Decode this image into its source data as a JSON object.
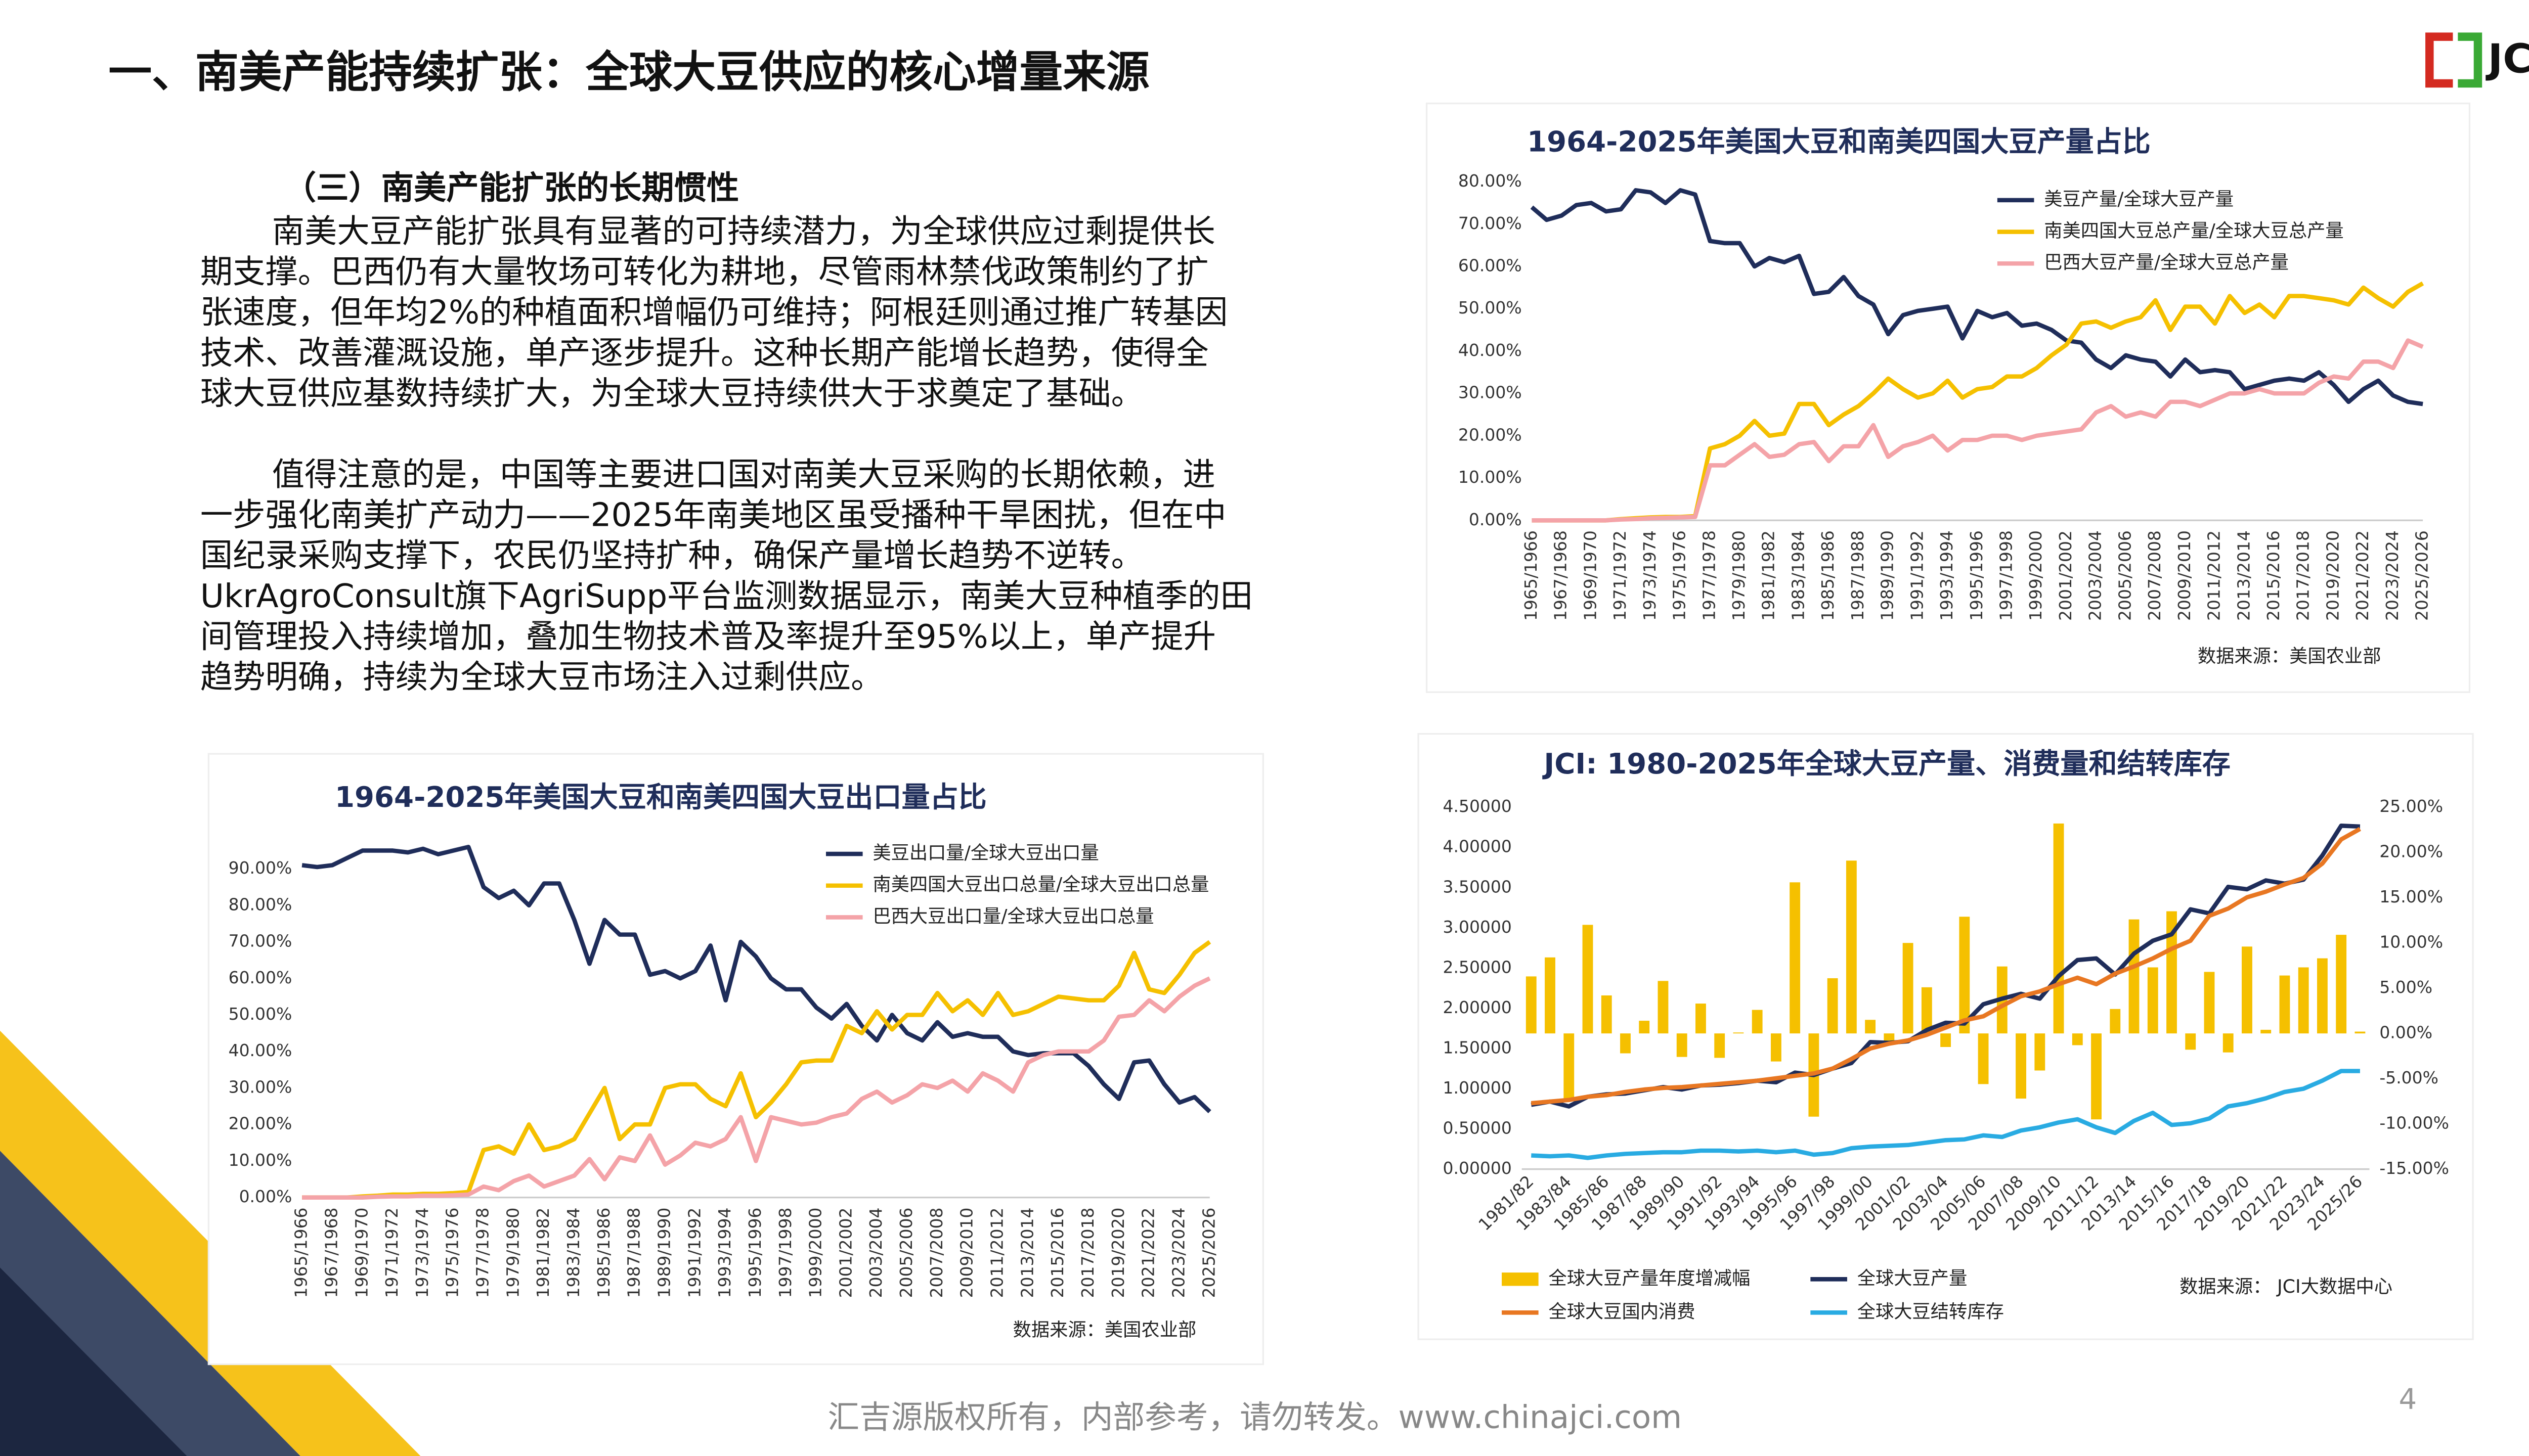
{
  "header": {
    "title": "一、南美产能持续扩张：全球大豆供应的核心增量来源",
    "logo": "JCI"
  },
  "section": {
    "heading": "（三）南美产能扩张的长期惯性",
    "paragraphs": [
      [
        "南美大豆产能扩张具有显著的可持续潜力，为全球供应过剩提供长",
        "期支撑。巴西仍有大量牧场可转化为耕地，尽管雨林禁伐政策制约了扩",
        "张速度，但年均2%的种植面积增幅仍可维持；阿根廷则通过推广转基因",
        "技术、改善灌溉设施，单产逐步提升。这种长期产能增长趋势，使得全",
        "球大豆供应基数持续扩大，为全球大豆持续供大于求奠定了基础。"
      ],
      [
        "值得注意的是，中国等主要进口国对南美大豆采购的长期依赖，进",
        "一步强化南美扩产动力——2025年南美地区虽受播种干旱困扰，但在中",
        "国纪录采购支撑下，农民仍坚持扩种，确保产量增长趋势不逆转。",
        "UkrAgroConsult旗下AgriSupp平台监测数据显示，南美大豆种植季的田",
        "间管理投入持续增加，叠加生物技术普及率提升至95%以上，单产提升",
        "趋势明确，持续为全球大豆市场注入过剩供应。"
      ]
    ]
  },
  "chart_data": [
    {
      "type": "line",
      "title": "1964-2025年美国大豆和南美四国大豆产量占比",
      "source": "数据来源：美国农业部",
      "legend": "top",
      "grid": false,
      "categories": [
        "1965/1966",
        null,
        "1967/1968",
        null,
        "1969/1970",
        null,
        "1971/1972",
        null,
        "1973/1974",
        null,
        "1975/1976",
        null,
        "1977/1978",
        null,
        "1979/1980",
        null,
        "1981/1982",
        null,
        "1983/1984",
        null,
        "1985/1986",
        null,
        "1987/1988",
        null,
        "1989/1990",
        null,
        "1991/1992",
        null,
        "1993/1994",
        null,
        "1995/1996",
        null,
        "1997/1998",
        null,
        "1999/2000",
        null,
        "2001/2002",
        null,
        "2003/2004",
        null,
        "2005/2006",
        null,
        "2007/2008",
        null,
        "2009/2010",
        null,
        "2011/2012",
        null,
        "2013/2014",
        null,
        "2015/2016",
        null,
        "2017/2018",
        null,
        "2019/2020",
        null,
        "2021/2022",
        null,
        "2023/2024",
        null,
        "2025/2026"
      ],
      "ylim": [
        0,
        80
      ],
      "yticks": [
        {
          "value": 0,
          "label": "0.00%"
        },
        {
          "value": 10,
          "label": "10.00%"
        },
        {
          "value": 20,
          "label": "20.00%"
        },
        {
          "value": 30,
          "label": "30.00%"
        },
        {
          "value": 40,
          "label": "40.00%"
        },
        {
          "value": 50,
          "label": "50.00%"
        },
        {
          "value": 60,
          "label": "60.00%"
        },
        {
          "value": 70,
          "label": "70.00%"
        },
        {
          "value": 80,
          "label": "80.00%"
        }
      ],
      "series": [
        {
          "name": "美豆产量/全球大豆产量",
          "color": "#1f2d5a",
          "values": [
            74,
            71,
            72,
            74.5,
            75,
            73,
            73.5,
            78,
            77.5,
            75,
            78,
            77,
            66,
            65.5,
            65.5,
            60,
            62,
            61,
            62.5,
            53.5,
            54,
            57.5,
            53,
            51,
            44,
            48.5,
            49.5,
            50,
            50.5,
            43,
            49.5,
            48,
            49,
            46,
            46.5,
            45,
            42.5,
            42,
            38,
            36,
            39,
            38,
            37.5,
            34,
            38,
            35,
            35.5,
            35,
            31,
            32,
            33,
            33.5,
            33,
            35,
            32,
            28,
            31,
            33,
            29.5,
            28,
            27.5
          ]
        },
        {
          "name": "南美四国大豆总产量/全球大豆总产量",
          "color": "#f5c000",
          "values": [
            0,
            0,
            0,
            0,
            0,
            0,
            0.3,
            0.5,
            0.7,
            0.8,
            0.8,
            1,
            17,
            18,
            20,
            23.5,
            20,
            20.5,
            27.5,
            27.5,
            22.5,
            25,
            27,
            30,
            33.5,
            31,
            29,
            30,
            33,
            29,
            31,
            31.5,
            34,
            34,
            36,
            39,
            41.5,
            46.5,
            47,
            45.5,
            47,
            48,
            52,
            45,
            50.5,
            50.5,
            46.5,
            53,
            49,
            51,
            48,
            53,
            53,
            52.5,
            52,
            51,
            55,
            52.5,
            50.5,
            54,
            56
          ]
        },
        {
          "name": "巴西大豆产量/全球大豆总产量",
          "color": "#f4a3a8",
          "values": [
            0,
            0,
            0,
            0,
            0,
            0,
            0.2,
            0.3,
            0.5,
            0.6,
            0.7,
            0.8,
            13,
            13,
            15.5,
            18,
            15,
            15.5,
            18,
            18.5,
            14,
            17.5,
            17.5,
            22.5,
            15,
            17.5,
            18.5,
            20,
            16.5,
            19,
            19,
            20,
            20,
            19,
            20,
            20.5,
            21,
            21.5,
            25.5,
            27,
            24.5,
            25.5,
            24.5,
            28,
            28,
            27,
            28.5,
            30,
            30,
            31,
            30,
            30,
            30,
            32.5,
            34,
            33.5,
            37.5,
            37.5,
            36,
            42.5,
            41
          ]
        }
      ]
    },
    {
      "type": "line",
      "title": "1964-2025年美国大豆和南美四国大豆出口量占比",
      "source": "数据来源：美国农业部",
      "legend": "top",
      "grid": false,
      "categories": [
        "1965/1966",
        null,
        "1967/1968",
        null,
        "1969/1970",
        null,
        "1971/1972",
        null,
        "1973/1974",
        null,
        "1975/1976",
        null,
        "1977/1978",
        null,
        "1979/1980",
        null,
        "1981/1982",
        null,
        "1983/1984",
        null,
        "1985/1986",
        null,
        "1987/1988",
        null,
        "1989/1990",
        null,
        "1991/1992",
        null,
        "1993/1994",
        null,
        "1995/1996",
        null,
        "1997/1998",
        null,
        "1999/2000",
        null,
        "2001/2002",
        null,
        "2003/2004",
        null,
        "2005/2006",
        null,
        "2007/2008",
        null,
        "2009/2010",
        null,
        "2011/2012",
        null,
        "2013/2014",
        null,
        "2015/2016",
        null,
        "2017/2018",
        null,
        "2019/2020",
        null,
        "2021/2022",
        null,
        "2023/2024",
        null,
        "2025/2026"
      ],
      "ylim": [
        0,
        95
      ],
      "yticks": [
        {
          "value": 0,
          "label": "0.00%"
        },
        {
          "value": 10,
          "label": "10.00%"
        },
        {
          "value": 20,
          "label": "20.00%"
        },
        {
          "value": 30,
          "label": "30.00%"
        },
        {
          "value": 40,
          "label": "40.00%"
        },
        {
          "value": 50,
          "label": "50.00%"
        },
        {
          "value": 60,
          "label": "60.00%"
        },
        {
          "value": 70,
          "label": "70.00%"
        },
        {
          "value": 80,
          "label": "80.00%"
        },
        {
          "value": 90,
          "label": "90.00%"
        }
      ],
      "series": [
        {
          "name": "美豆出口量/全球大豆出口量",
          "color": "#1f2d5a",
          "values": [
            91,
            90.5,
            91,
            93,
            95,
            95,
            95,
            94.5,
            95.5,
            94,
            95,
            96,
            85,
            82,
            84,
            80,
            86,
            86,
            76,
            64,
            76,
            72,
            72,
            61,
            62,
            60,
            62,
            69,
            54,
            70,
            66,
            60,
            57,
            57,
            52,
            49,
            53,
            47,
            43,
            50,
            45,
            43,
            48,
            44,
            45,
            44,
            44,
            40,
            39,
            39.5,
            39.5,
            39.5,
            36,
            31,
            27,
            37,
            37.5,
            31,
            26,
            27.5,
            23.5
          ]
        },
        {
          "name": "南美四国大豆出口总量/全球大豆出口总量",
          "color": "#f5c000",
          "values": [
            0,
            0,
            0,
            0,
            0.3,
            0.5,
            0.8,
            0.8,
            1,
            1,
            1.2,
            1.5,
            13,
            14,
            12,
            20,
            13,
            14,
            16,
            23,
            30,
            16,
            20,
            20,
            30,
            31,
            31,
            27,
            25,
            34,
            22,
            26,
            31,
            37,
            37.5,
            37.5,
            47,
            45,
            51,
            46,
            50,
            50,
            56,
            51,
            54,
            50,
            56,
            50,
            51,
            53,
            55,
            54.5,
            54,
            54,
            58,
            67,
            57,
            56,
            61,
            67,
            70
          ]
        },
        {
          "name": "巴西大豆出口量/全球大豆出口总量",
          "color": "#f4a3a8",
          "values": [
            0,
            0,
            0,
            0,
            0,
            0.2,
            0.3,
            0.3,
            0.5,
            0.5,
            0.6,
            0.8,
            3,
            2,
            4.5,
            6,
            3,
            4.5,
            6,
            10.5,
            5,
            11,
            10,
            17,
            9,
            11.5,
            15,
            14,
            16,
            22,
            10,
            22,
            21,
            20,
            20.5,
            22,
            23,
            27,
            29,
            26,
            28,
            31,
            30,
            32,
            29,
            34,
            32,
            29,
            37,
            39,
            40,
            40,
            40,
            43,
            49.5,
            50,
            54,
            51,
            55,
            58,
            60
          ]
        }
      ]
    },
    {
      "type": "combo",
      "title": "JCI: 1980-2025年全球大豆产量、消费量和结转库存",
      "source": "数据来源： JCI大数据中心",
      "legend": "bottom",
      "grid": false,
      "categories": [
        "1981/82",
        null,
        "1983/84",
        null,
        "1985/86",
        null,
        "1987/88",
        null,
        "1989/90",
        null,
        "1991/92",
        null,
        "1993/94",
        null,
        "1995/96",
        null,
        "1997/98",
        null,
        "1999/00",
        null,
        "2001/02",
        null,
        "2003/04",
        null,
        "2005/06",
        null,
        "2007/08",
        null,
        "2009/10",
        null,
        "2011/12",
        null,
        "2013/14",
        null,
        "2015/16",
        null,
        "2017/18",
        null,
        "2019/20",
        null,
        "2021/22",
        null,
        "2023/24",
        null,
        "2025/26"
      ],
      "ylim": [
        0,
        4.5
      ],
      "yticks": [
        {
          "value": 0,
          "label": "0.00000"
        },
        {
          "value": 0.5,
          "label": "0.50000"
        },
        {
          "value": 1,
          "label": "1.00000"
        },
        {
          "value": 1.5,
          "label": "1.50000"
        },
        {
          "value": 2,
          "label": "2.00000"
        },
        {
          "value": 2.5,
          "label": "2.50000"
        },
        {
          "value": 3,
          "label": "3.00000"
        },
        {
          "value": 3.5,
          "label": "3.50000"
        },
        {
          "value": 4,
          "label": "4.00000"
        },
        {
          "value": 4.5,
          "label": "4.50000"
        }
      ],
      "y2lim": [
        -15,
        25
      ],
      "y2ticks": [
        {
          "value": -15,
          "label": "-15.00%"
        },
        {
          "value": -10,
          "label": "-10.00%"
        },
        {
          "value": -5,
          "label": "-5.00%"
        },
        {
          "value": 0,
          "label": "0.00%"
        },
        {
          "value": 5,
          "label": "5.00%"
        },
        {
          "value": 10,
          "label": "10.00%"
        },
        {
          "value": 15,
          "label": "15.00%"
        },
        {
          "value": 20,
          "label": "20.00%"
        },
        {
          "value": 25,
          "label": "25.00%"
        }
      ],
      "series": [
        {
          "name": "全球大豆产量年度增减幅",
          "type": "bar",
          "axis": "y2",
          "color": "#f5c000",
          "values": [
            6.3,
            8.4,
            -7.4,
            12,
            4.2,
            -2.2,
            1.4,
            5.8,
            -2.6,
            3.3,
            -2.7,
            0.1,
            2.6,
            -3.1,
            16.7,
            -9.2,
            6.1,
            19.1,
            1.5,
            -0.8,
            10,
            5.1,
            -1.5,
            12.9,
            -5.6,
            7.4,
            -7.2,
            -4.1,
            23.2,
            -1.3,
            -9.5,
            2.7,
            12.6,
            7.3,
            13.5,
            -1.8,
            6.8,
            -2.1,
            9.6,
            0.4,
            6.4,
            7.3,
            8.3,
            10.9,
            0.2
          ]
        },
        {
          "name": "全球大豆产量",
          "type": "line",
          "color": "#1f2d5a",
          "values": [
            0.8,
            0.84,
            0.78,
            0.9,
            0.93,
            0.94,
            0.98,
            1.02,
            0.99,
            1.04,
            1.05,
            1.07,
            1.1,
            1.08,
            1.2,
            1.17,
            1.25,
            1.32,
            1.58,
            1.57,
            1.59,
            1.73,
            1.82,
            1.81,
            2.05,
            2.12,
            2.18,
            2.12,
            2.4,
            2.6,
            2.62,
            2.42,
            2.68,
            2.84,
            2.92,
            3.23,
            3.18,
            3.51,
            3.48,
            3.59,
            3.55,
            3.6,
            3.9,
            4.27,
            4.26
          ]
        },
        {
          "name": "全球大豆国内消费",
          "type": "line",
          "color": "#e87722",
          "values": [
            0.82,
            0.84,
            0.86,
            0.9,
            0.92,
            0.96,
            0.99,
            1.01,
            1.02,
            1.04,
            1.06,
            1.08,
            1.1,
            1.13,
            1.16,
            1.19,
            1.25,
            1.37,
            1.5,
            1.56,
            1.6,
            1.67,
            1.76,
            1.85,
            1.9,
            2.03,
            2.15,
            2.21,
            2.3,
            2.38,
            2.3,
            2.43,
            2.52,
            2.62,
            2.74,
            2.84,
            3.15,
            3.24,
            3.38,
            3.45,
            3.54,
            3.62,
            3.8,
            4.1,
            4.23
          ]
        },
        {
          "name": "全球大豆结转库存",
          "type": "line",
          "color": "#29abe2",
          "values": [
            0.17,
            0.16,
            0.17,
            0.14,
            0.17,
            0.19,
            0.2,
            0.21,
            0.21,
            0.23,
            0.23,
            0.22,
            0.23,
            0.21,
            0.23,
            0.18,
            0.2,
            0.26,
            0.28,
            0.29,
            0.3,
            0.33,
            0.36,
            0.37,
            0.42,
            0.4,
            0.48,
            0.52,
            0.58,
            0.62,
            0.52,
            0.45,
            0.6,
            0.7,
            0.55,
            0.57,
            0.63,
            0.78,
            0.82,
            0.88,
            0.96,
            1.0,
            1.1,
            1.22,
            1.22
          ]
        }
      ]
    }
  ],
  "footer": {
    "text": "汇吉源版权所有，内部参考，请勿转发。www.chinajci.com",
    "page_number": 4
  }
}
